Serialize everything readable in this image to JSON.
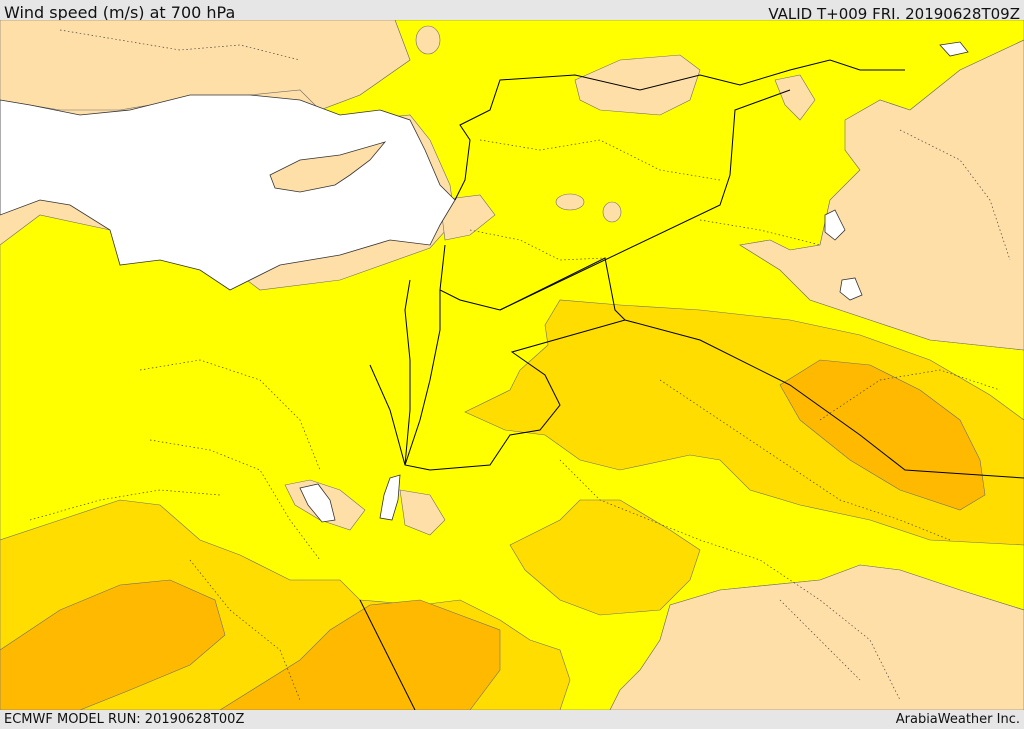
{
  "header": {
    "title": "Wind speed (m/s) at 700 hPa",
    "valid": "VALID T+009 FRI. 20190628T09Z"
  },
  "footer": {
    "model_run": "ECMWF MODEL RUN: 20190628T00Z",
    "credit": "ArabiaWeather Inc."
  },
  "colors": {
    "sea": "#ffffff",
    "land_calm": "#ffdfa8",
    "wind_level_1": "#ffff00",
    "wind_level_2": "#ffdd00",
    "wind_level_3": "#ffba00",
    "border": "#000000"
  }
}
